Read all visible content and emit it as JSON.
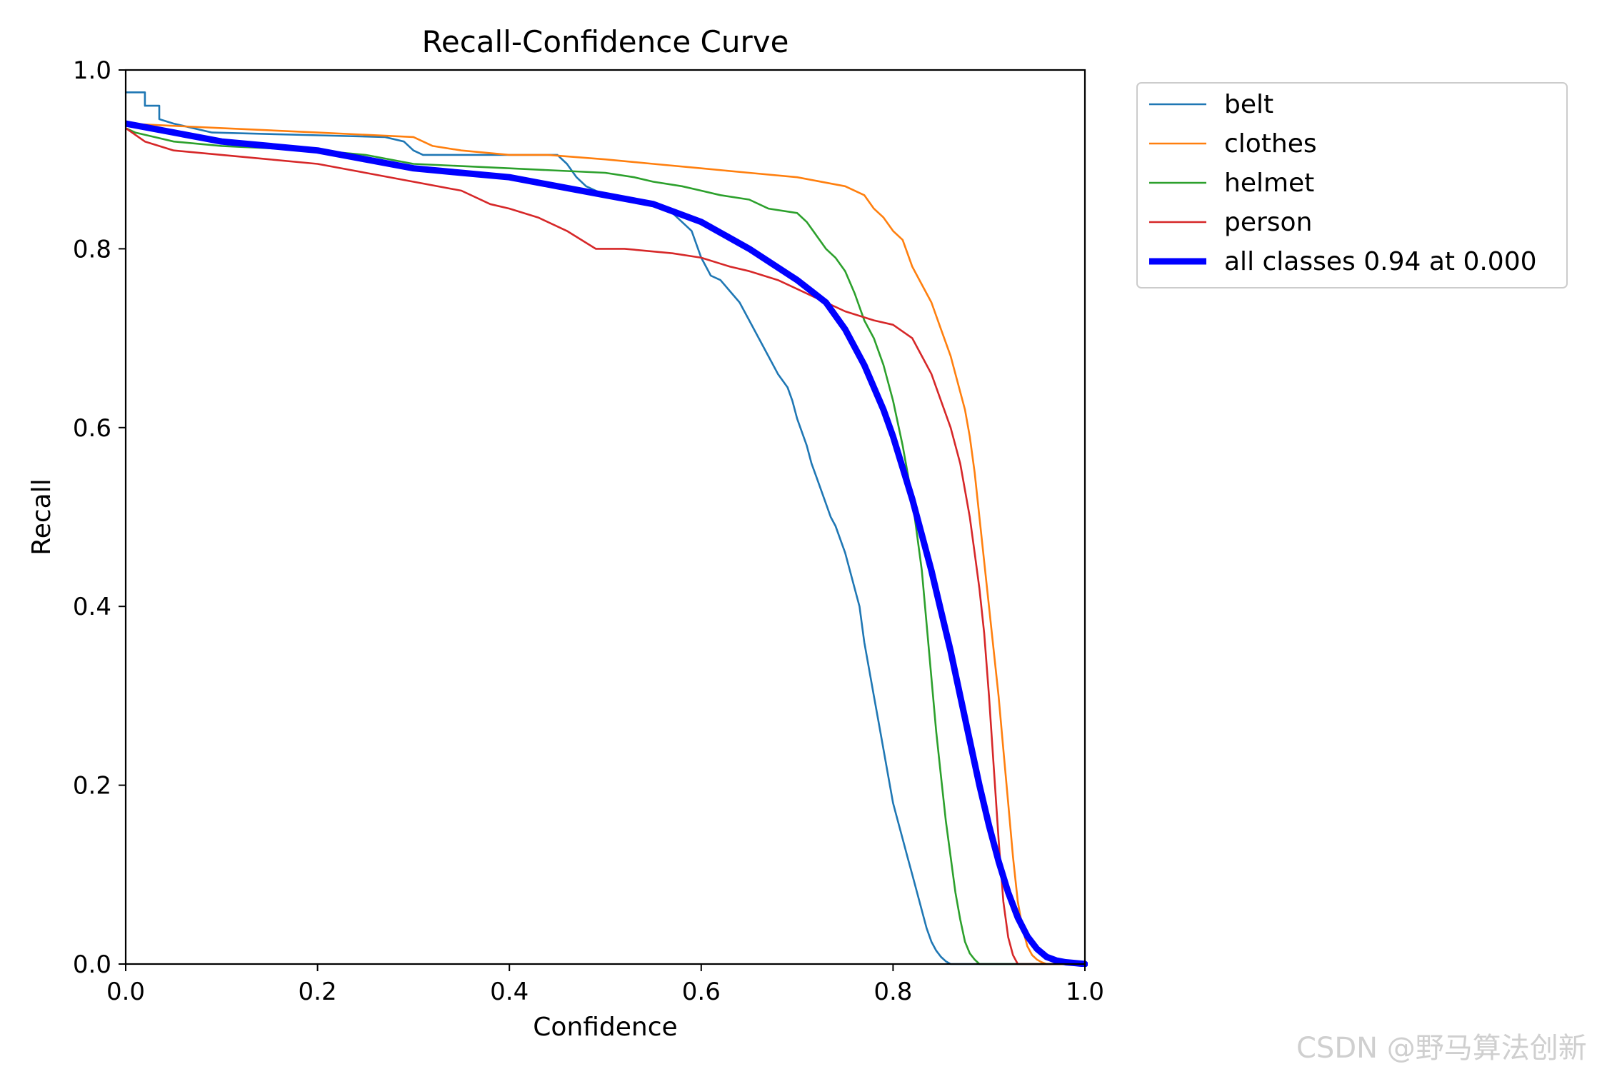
{
  "watermark": "CSDN @野马算法创新",
  "chart_data": {
    "type": "line",
    "title": "Recall-Confidence Curve",
    "xlabel": "Confidence",
    "ylabel": "Recall",
    "xlim": [
      0,
      1
    ],
    "ylim": [
      0,
      1
    ],
    "xticks": [
      "0.0",
      "0.2",
      "0.4",
      "0.6",
      "0.8",
      "1.0"
    ],
    "yticks": [
      "0.0",
      "0.2",
      "0.4",
      "0.6",
      "0.8",
      "1.0"
    ],
    "grid": false,
    "legend_position": "outside-right",
    "series": [
      {
        "name": "belt",
        "color": "#1f77b4",
        "width": "thin",
        "x": [
          0.0,
          0.02,
          0.02,
          0.035,
          0.035,
          0.05,
          0.09,
          0.27,
          0.29,
          0.3,
          0.31,
          0.33,
          0.45,
          0.46,
          0.47,
          0.48,
          0.49,
          0.5,
          0.52,
          0.55,
          0.57,
          0.58,
          0.59,
          0.6,
          0.605,
          0.61,
          0.62,
          0.64,
          0.65,
          0.66,
          0.67,
          0.68,
          0.69,
          0.695,
          0.7,
          0.71,
          0.715,
          0.72,
          0.725,
          0.73,
          0.735,
          0.74,
          0.75,
          0.755,
          0.76,
          0.765,
          0.77,
          0.775,
          0.78,
          0.785,
          0.79,
          0.795,
          0.8,
          0.805,
          0.81,
          0.815,
          0.82,
          0.825,
          0.83,
          0.835,
          0.84,
          0.845,
          0.85,
          0.855,
          0.86,
          0.865,
          0.9,
          1.0
        ],
        "y": [
          0.975,
          0.975,
          0.96,
          0.96,
          0.945,
          0.94,
          0.93,
          0.925,
          0.92,
          0.91,
          0.905,
          0.905,
          0.905,
          0.895,
          0.88,
          0.87,
          0.865,
          0.86,
          0.855,
          0.85,
          0.84,
          0.83,
          0.82,
          0.79,
          0.78,
          0.77,
          0.765,
          0.74,
          0.72,
          0.7,
          0.68,
          0.66,
          0.645,
          0.63,
          0.61,
          0.58,
          0.56,
          0.545,
          0.53,
          0.515,
          0.5,
          0.49,
          0.46,
          0.44,
          0.42,
          0.4,
          0.36,
          0.33,
          0.3,
          0.27,
          0.24,
          0.21,
          0.18,
          0.16,
          0.14,
          0.12,
          0.1,
          0.08,
          0.06,
          0.04,
          0.025,
          0.015,
          0.008,
          0.003,
          0.0,
          0.0,
          0.0,
          0.0
        ],
        "data_note": ""
      },
      {
        "name": "clothes",
        "color": "#ff7f0e",
        "width": "thin",
        "x": [
          0.0,
          0.1,
          0.2,
          0.3,
          0.32,
          0.35,
          0.4,
          0.44,
          0.5,
          0.55,
          0.6,
          0.65,
          0.7,
          0.75,
          0.77,
          0.78,
          0.79,
          0.8,
          0.81,
          0.82,
          0.83,
          0.84,
          0.85,
          0.86,
          0.87,
          0.875,
          0.88,
          0.885,
          0.89,
          0.895,
          0.9,
          0.905,
          0.91,
          0.915,
          0.92,
          0.925,
          0.93,
          0.935,
          0.94,
          0.945,
          0.95,
          0.955,
          0.96,
          1.0
        ],
        "y": [
          0.94,
          0.935,
          0.93,
          0.925,
          0.915,
          0.91,
          0.905,
          0.905,
          0.9,
          0.895,
          0.89,
          0.885,
          0.88,
          0.87,
          0.86,
          0.845,
          0.835,
          0.82,
          0.81,
          0.78,
          0.76,
          0.74,
          0.71,
          0.68,
          0.64,
          0.62,
          0.59,
          0.55,
          0.5,
          0.45,
          0.4,
          0.35,
          0.3,
          0.24,
          0.18,
          0.12,
          0.07,
          0.04,
          0.02,
          0.01,
          0.005,
          0.002,
          0.0,
          0.0
        ],
        "data_note": ""
      },
      {
        "name": "helmet",
        "color": "#2ca02c",
        "width": "thin",
        "x": [
          0.0,
          0.01,
          0.03,
          0.05,
          0.1,
          0.2,
          0.25,
          0.3,
          0.4,
          0.5,
          0.53,
          0.55,
          0.58,
          0.6,
          0.62,
          0.65,
          0.67,
          0.7,
          0.71,
          0.72,
          0.73,
          0.74,
          0.75,
          0.76,
          0.77,
          0.78,
          0.79,
          0.8,
          0.81,
          0.82,
          0.825,
          0.83,
          0.835,
          0.84,
          0.845,
          0.85,
          0.855,
          0.86,
          0.865,
          0.87,
          0.875,
          0.88,
          0.885,
          0.89,
          1.0
        ],
        "y": [
          0.935,
          0.93,
          0.925,
          0.92,
          0.915,
          0.91,
          0.905,
          0.895,
          0.89,
          0.885,
          0.88,
          0.875,
          0.87,
          0.865,
          0.86,
          0.855,
          0.845,
          0.84,
          0.83,
          0.815,
          0.8,
          0.79,
          0.775,
          0.75,
          0.72,
          0.7,
          0.67,
          0.63,
          0.58,
          0.52,
          0.48,
          0.44,
          0.38,
          0.32,
          0.26,
          0.21,
          0.16,
          0.12,
          0.08,
          0.05,
          0.025,
          0.012,
          0.005,
          0.0,
          0.0
        ],
        "data_note": ""
      },
      {
        "name": "person",
        "color": "#d62728",
        "width": "thin",
        "x": [
          0.0,
          0.02,
          0.05,
          0.1,
          0.15,
          0.2,
          0.25,
          0.3,
          0.35,
          0.38,
          0.4,
          0.43,
          0.46,
          0.49,
          0.52,
          0.57,
          0.6,
          0.63,
          0.65,
          0.68,
          0.7,
          0.72,
          0.75,
          0.78,
          0.8,
          0.82,
          0.83,
          0.84,
          0.85,
          0.86,
          0.87,
          0.875,
          0.88,
          0.885,
          0.89,
          0.895,
          0.9,
          0.905,
          0.91,
          0.915,
          0.92,
          0.925,
          0.93,
          1.0
        ],
        "y": [
          0.935,
          0.92,
          0.91,
          0.905,
          0.9,
          0.895,
          0.885,
          0.875,
          0.865,
          0.85,
          0.845,
          0.835,
          0.82,
          0.8,
          0.8,
          0.795,
          0.79,
          0.78,
          0.775,
          0.765,
          0.755,
          0.745,
          0.73,
          0.72,
          0.715,
          0.7,
          0.68,
          0.66,
          0.63,
          0.6,
          0.56,
          0.53,
          0.5,
          0.46,
          0.42,
          0.37,
          0.3,
          0.22,
          0.14,
          0.07,
          0.03,
          0.01,
          0.0,
          0.0
        ],
        "data_note": ""
      },
      {
        "name": "all classes 0.94 at 0.000",
        "color": "#0000ff",
        "width": "thick",
        "x": [
          0.0,
          0.05,
          0.1,
          0.15,
          0.2,
          0.25,
          0.3,
          0.35,
          0.4,
          0.45,
          0.5,
          0.55,
          0.6,
          0.65,
          0.7,
          0.73,
          0.75,
          0.77,
          0.79,
          0.8,
          0.81,
          0.82,
          0.83,
          0.84,
          0.85,
          0.86,
          0.87,
          0.88,
          0.89,
          0.9,
          0.91,
          0.92,
          0.93,
          0.94,
          0.95,
          0.96,
          0.97,
          0.98,
          0.99,
          1.0
        ],
        "y": [
          0.94,
          0.93,
          0.92,
          0.915,
          0.91,
          0.9,
          0.89,
          0.885,
          0.88,
          0.87,
          0.86,
          0.85,
          0.83,
          0.8,
          0.765,
          0.74,
          0.71,
          0.67,
          0.62,
          0.59,
          0.555,
          0.52,
          0.48,
          0.44,
          0.395,
          0.35,
          0.3,
          0.25,
          0.2,
          0.155,
          0.115,
          0.08,
          0.052,
          0.031,
          0.017,
          0.008,
          0.004,
          0.002,
          0.001,
          0.0
        ],
        "data_note": ""
      }
    ]
  }
}
